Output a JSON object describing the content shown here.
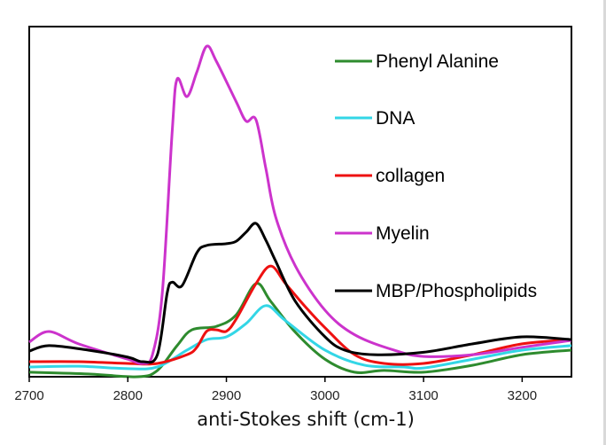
{
  "chart_data": {
    "type": "line",
    "title": "",
    "xlabel": "anti-Stokes shift (cm-1)",
    "ylabel": "",
    "xlim": [
      2700,
      3250
    ],
    "ylim": [
      0,
      100
    ],
    "xticks": [
      2700,
      2800,
      2900,
      3000,
      3100,
      3200
    ],
    "grid": false,
    "legend_position": "top-right",
    "series": [
      {
        "name": "Phenyl Alanine",
        "color": "#2e8b2e",
        "x": [
          2700,
          2760,
          2810,
          2830,
          2850,
          2865,
          2890,
          2910,
          2930,
          2945,
          2970,
          3000,
          3030,
          3060,
          3100,
          3150,
          3200,
          3250
        ],
        "y": [
          1.3,
          0.8,
          0,
          1.8,
          8.9,
          13.4,
          14.4,
          17.7,
          26.6,
          21.5,
          12.7,
          5,
          1.3,
          1.8,
          1.3,
          3.3,
          6.3,
          7.6
        ]
      },
      {
        "name": "DNA",
        "color": "#33d6e6",
        "x": [
          2700,
          2750,
          2800,
          2830,
          2860,
          2880,
          2900,
          2920,
          2940,
          2960,
          3000,
          3040,
          3080,
          3100,
          3150,
          3200,
          3250
        ],
        "y": [
          2.8,
          3,
          2.3,
          2.8,
          7.6,
          10.6,
          11.4,
          15.2,
          20.3,
          16,
          7.6,
          3.3,
          2.8,
          2.5,
          5,
          7.6,
          8.9
        ]
      },
      {
        "name": "collagen",
        "color": "#ee1111",
        "x": [
          2700,
          2750,
          2800,
          2830,
          2860,
          2870,
          2880,
          2890,
          2900,
          2910,
          2930,
          2945,
          2960,
          2980,
          3000,
          3030,
          3060,
          3100,
          3150,
          3200,
          3250
        ],
        "y": [
          4.3,
          4.3,
          3.8,
          3.8,
          6.3,
          8.4,
          13,
          13.4,
          13,
          16.5,
          26.6,
          31.6,
          26.6,
          20,
          14,
          6.3,
          3.8,
          3.8,
          6.3,
          9.4,
          10.6
        ]
      },
      {
        "name": "Myelin",
        "color": "#cc33cc",
        "x": [
          2700,
          2720,
          2750,
          2800,
          2815,
          2825,
          2835,
          2845,
          2850,
          2860,
          2870,
          2880,
          2890,
          2910,
          2920,
          2930,
          2940,
          2950,
          2970,
          3000,
          3030,
          3070,
          3100,
          3150,
          3200,
          3250
        ],
        "y": [
          9.9,
          12.9,
          9.4,
          5,
          3.8,
          6.3,
          24,
          70,
          85,
          80,
          87,
          94.4,
          90,
          78.5,
          73,
          73.4,
          59.5,
          45.6,
          31.6,
          19,
          12,
          7.6,
          5.8,
          6.3,
          8.4,
          10.4
        ]
      },
      {
        "name": "MBP/Phospholipids",
        "color": "#000000",
        "x": [
          2700,
          2720,
          2760,
          2800,
          2815,
          2830,
          2840,
          2845,
          2855,
          2870,
          2880,
          2900,
          2910,
          2920,
          2930,
          2940,
          2950,
          2970,
          3000,
          3020,
          3050,
          3100,
          3150,
          3200,
          3250
        ],
        "y": [
          7.3,
          8.9,
          7.6,
          5.6,
          4.3,
          6.3,
          24,
          27,
          26,
          35.4,
          37.5,
          38,
          38.7,
          41.3,
          43.8,
          39,
          33,
          21.5,
          11.4,
          7.6,
          6.3,
          7,
          9.4,
          11.4,
          10.6
        ]
      }
    ]
  }
}
